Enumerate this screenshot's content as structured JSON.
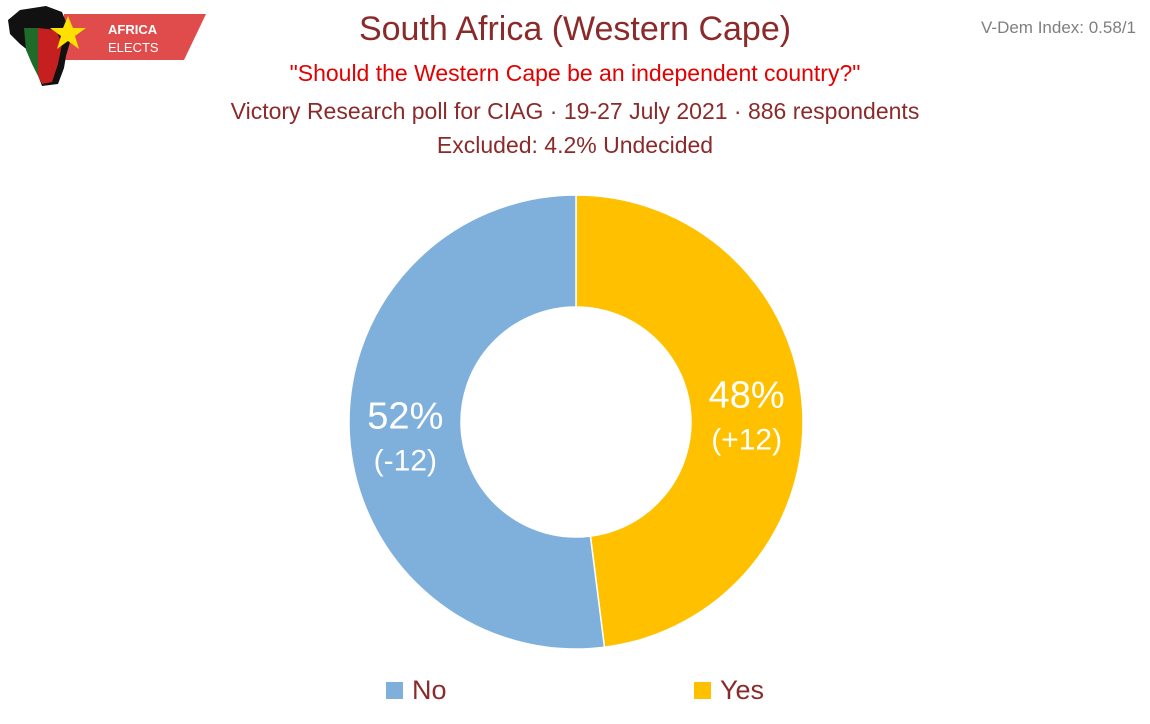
{
  "logo": {
    "line1": "AFRICA",
    "line2": "ELECTS"
  },
  "vdem_index": "V-Dem Index: 0.58/1",
  "header": {
    "title": "South Africa (Western Cape)",
    "question": "\"Should the Western Cape be an independent country?\"",
    "poll_info": "Victory Research poll for CIAG · 19-27 July 2021 · 886 respondents",
    "excluded": "Excluded: 4.2% Undecided"
  },
  "colors": {
    "no": "#7fb0dc",
    "yes": "#ffc000",
    "title": "#8b2a2a",
    "question": "#e30000",
    "logo_banner": "#e04b4b"
  },
  "chart_data": {
    "type": "pie",
    "variant": "donut",
    "start_angle_deg": 0,
    "direction": "clockwise",
    "slices": [
      {
        "label": "Yes",
        "value": 48,
        "value_label": "48%",
        "change_label": "(+12)",
        "color": "#ffc000"
      },
      {
        "label": "No",
        "value": 52,
        "value_label": "52%",
        "change_label": "(-12)",
        "color": "#7fb0dc"
      }
    ],
    "legend": {
      "position": "bottom",
      "items": [
        {
          "label": "No",
          "color": "#7fb0dc"
        },
        {
          "label": "Yes",
          "color": "#ffc000"
        }
      ]
    }
  }
}
